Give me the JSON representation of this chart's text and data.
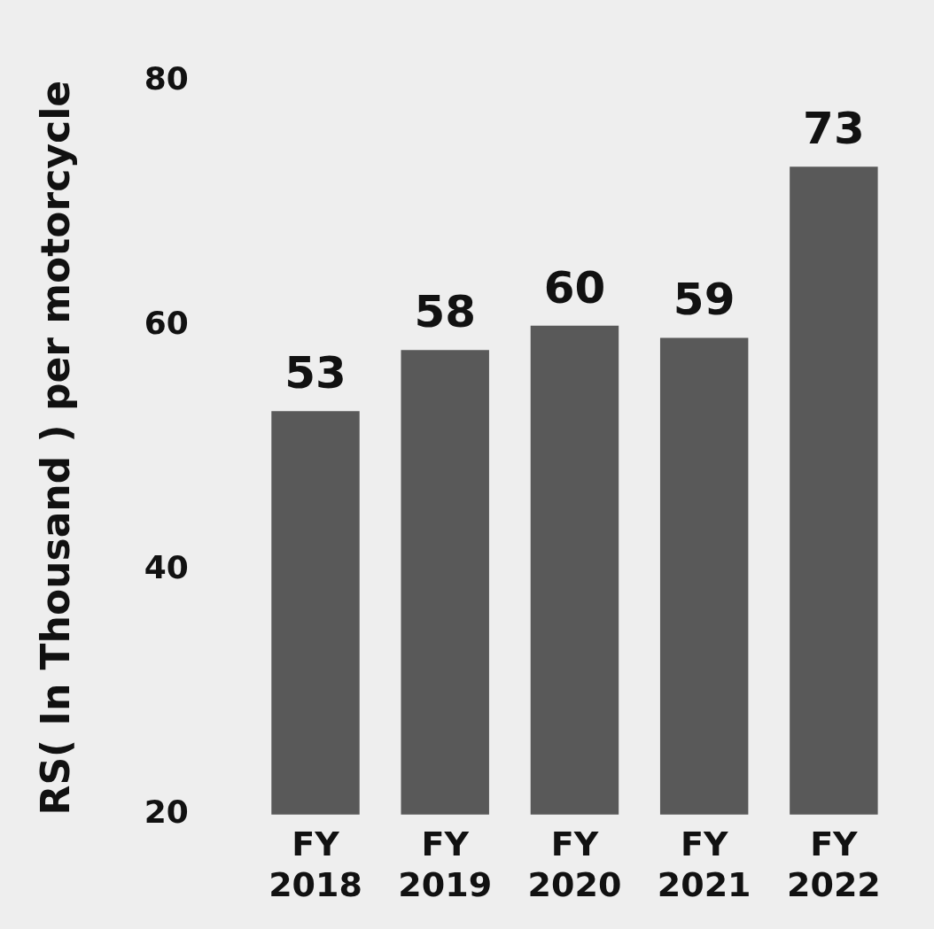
{
  "chart_data": {
    "type": "bar",
    "ylabel": "RS( In Thousand ) per motorcycle",
    "categories": [
      "FY 2018",
      "FY 2019",
      "FY 2020",
      "FY 2021",
      "FY 2022"
    ],
    "values": [
      53,
      58,
      60,
      59,
      73
    ],
    "color": "#595959",
    "ylim": [
      20,
      80
    ],
    "yticks": [
      20,
      40,
      60,
      80
    ],
    "grid": false,
    "legend": false,
    "data_labels": true
  }
}
